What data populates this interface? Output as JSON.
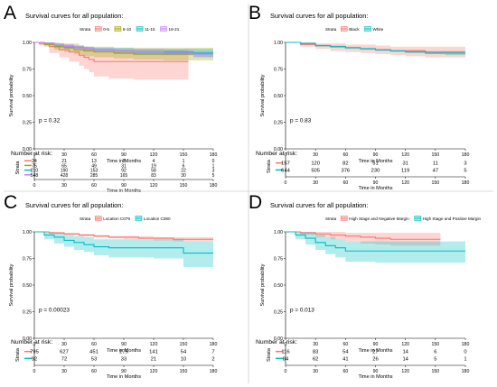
{
  "chart_data": [
    {
      "type": "line",
      "panel": "A",
      "title": "Survival curves for all population:",
      "xlabel": "Time in Months",
      "ylabel": "Survival probability",
      "xlim": [
        0,
        180
      ],
      "ylim": [
        0,
        1
      ],
      "xticks": [
        "0",
        "30",
        "60",
        "90",
        "120",
        "150",
        "180"
      ],
      "yticks": [
        "0.00",
        "0.25",
        "0.50",
        "0.75",
        "1.00"
      ],
      "legend_title": "Strata",
      "pvalue": "p = 0.32",
      "series": [
        {
          "name": "0-5",
          "color": "#F8766D",
          "x": [
            0,
            5,
            15,
            25,
            35,
            45,
            50,
            55,
            60,
            75,
            100,
            130,
            155
          ],
          "y": [
            1.0,
            0.99,
            0.96,
            0.93,
            0.91,
            0.88,
            0.86,
            0.84,
            0.82,
            0.82,
            0.82,
            0.82,
            0.82
          ],
          "ci_low": [
            1.0,
            0.97,
            0.9,
            0.86,
            0.82,
            0.78,
            0.75,
            0.72,
            0.68,
            0.66,
            0.65,
            0.65,
            0.65
          ],
          "ci_high": [
            1.0,
            1.0,
            1.0,
            0.99,
            0.99,
            0.97,
            0.96,
            0.95,
            0.93,
            0.93,
            0.93,
            0.93,
            0.93
          ]
        },
        {
          "name": "6-10",
          "color": "#A3A500",
          "x": [
            0,
            10,
            20,
            30,
            40,
            50,
            60,
            80,
            100,
            130,
            160,
            180
          ],
          "y": [
            1.0,
            0.98,
            0.96,
            0.95,
            0.93,
            0.92,
            0.91,
            0.9,
            0.89,
            0.89,
            0.89,
            0.89
          ],
          "ci_low": [
            1.0,
            0.96,
            0.93,
            0.91,
            0.89,
            0.87,
            0.86,
            0.85,
            0.84,
            0.83,
            0.83,
            0.83
          ],
          "ci_high": [
            1.0,
            1.0,
            0.99,
            0.98,
            0.97,
            0.96,
            0.96,
            0.95,
            0.95,
            0.95,
            0.95,
            0.95
          ]
        },
        {
          "name": "11-15",
          "color": "#00BFC4",
          "x": [
            0,
            10,
            20,
            30,
            40,
            50,
            60,
            80,
            100,
            130,
            160,
            180
          ],
          "y": [
            1.0,
            0.99,
            0.97,
            0.96,
            0.95,
            0.94,
            0.93,
            0.92,
            0.91,
            0.91,
            0.9,
            0.9
          ],
          "ci_low": [
            1.0,
            0.98,
            0.95,
            0.94,
            0.93,
            0.92,
            0.91,
            0.89,
            0.88,
            0.88,
            0.86,
            0.86
          ],
          "ci_high": [
            1.0,
            1.0,
            0.99,
            0.98,
            0.97,
            0.96,
            0.95,
            0.95,
            0.94,
            0.94,
            0.94,
            0.94
          ]
        },
        {
          "name": "16-21",
          "color": "#C77CFF",
          "x": [
            0,
            10,
            20,
            30,
            40,
            50,
            60,
            80,
            100,
            130,
            160,
            180
          ],
          "y": [
            1.0,
            0.99,
            0.97,
            0.96,
            0.95,
            0.94,
            0.93,
            0.92,
            0.91,
            0.9,
            0.89,
            0.89
          ],
          "ci_low": [
            1.0,
            0.98,
            0.96,
            0.95,
            0.94,
            0.93,
            0.92,
            0.9,
            0.89,
            0.88,
            0.86,
            0.86
          ],
          "ci_high": [
            1.0,
            1.0,
            0.99,
            0.98,
            0.97,
            0.96,
            0.95,
            0.94,
            0.94,
            0.93,
            0.92,
            0.92
          ]
        }
      ],
      "risk_table": {
        "title": "Number at risk:",
        "ylabel": "Strata",
        "small": true,
        "times": [
          0,
          30,
          60,
          90,
          120,
          150,
          180
        ],
        "rows": [
          {
            "color": "#F8766D",
            "values": [
              "24",
              "21",
              "13",
              "8",
              "4",
              "1",
              "0"
            ]
          },
          {
            "color": "#A3A500",
            "values": [
              "75",
              "65",
              "49",
              "31",
              "19",
              "6",
              "1"
            ]
          },
          {
            "color": "#00BFC4",
            "values": [
              "210",
              "190",
              "153",
              "92",
              "58",
              "22",
              "3"
            ]
          },
          {
            "color": "#C77CFF",
            "values": [
              "548",
              "428",
              "285",
              "165",
              "83",
              "30",
              "5"
            ]
          }
        ]
      }
    },
    {
      "type": "line",
      "panel": "B",
      "title": "Survival curves for all population:",
      "xlabel": "Time in Months",
      "ylabel": "Survival probability",
      "xlim": [
        0,
        180
      ],
      "ylim": [
        0,
        1
      ],
      "xticks": [
        "0",
        "30",
        "60",
        "90",
        "120",
        "150",
        "180"
      ],
      "yticks": [
        "0.00",
        "0.25",
        "0.50",
        "0.75",
        "1.00"
      ],
      "legend_title": "Strata",
      "pvalue": "p = 0.83",
      "series": [
        {
          "name": "Black",
          "color": "#F8766D",
          "x": [
            0,
            15,
            30,
            45,
            60,
            75,
            90,
            105,
            120,
            140,
            160,
            180
          ],
          "y": [
            1.0,
            0.98,
            0.97,
            0.96,
            0.95,
            0.94,
            0.93,
            0.92,
            0.92,
            0.91,
            0.91,
            0.91
          ],
          "ci_low": [
            1.0,
            0.96,
            0.94,
            0.92,
            0.91,
            0.9,
            0.89,
            0.88,
            0.87,
            0.86,
            0.86,
            0.86
          ],
          "ci_high": [
            1.0,
            1.0,
            0.99,
            0.99,
            0.98,
            0.98,
            0.97,
            0.96,
            0.96,
            0.96,
            0.96,
            0.96
          ]
        },
        {
          "name": "White",
          "color": "#00BFC4",
          "x": [
            0,
            15,
            30,
            45,
            60,
            75,
            90,
            105,
            120,
            140,
            160,
            180
          ],
          "y": [
            1.0,
            0.99,
            0.97,
            0.96,
            0.95,
            0.94,
            0.93,
            0.92,
            0.91,
            0.9,
            0.9,
            0.9
          ],
          "ci_low": [
            1.0,
            0.98,
            0.96,
            0.95,
            0.94,
            0.93,
            0.92,
            0.91,
            0.9,
            0.89,
            0.88,
            0.88
          ],
          "ci_high": [
            1.0,
            1.0,
            0.98,
            0.97,
            0.96,
            0.95,
            0.94,
            0.93,
            0.93,
            0.92,
            0.92,
            0.92
          ]
        }
      ],
      "risk_table": {
        "title": "Number at risk:",
        "ylabel": "Strata",
        "small": false,
        "times": [
          0,
          30,
          60,
          90,
          120,
          150,
          180
        ],
        "rows": [
          {
            "color": "#F8766D",
            "values": [
              "157",
              "120",
              "82",
              "51",
              "31",
              "11",
              "3"
            ]
          },
          {
            "color": "#00BFC4",
            "values": [
              "644",
              "505",
              "376",
              "230",
              "119",
              "47",
              "5"
            ]
          }
        ]
      }
    },
    {
      "type": "line",
      "panel": "C",
      "title": "Survival curves for all population:",
      "xlabel": "Time in Months",
      "ylabel": "Survival probability",
      "xlim": [
        0,
        180
      ],
      "ylim": [
        0,
        1
      ],
      "xticks": [
        "0",
        "30",
        "60",
        "90",
        "120",
        "150",
        "180"
      ],
      "yticks": [
        "0.00",
        "0.25",
        "0.50",
        "0.75",
        "1.00"
      ],
      "legend_title": "Strata",
      "pvalue": "p = 0.00023",
      "series": [
        {
          "name": "Location C079",
          "color": "#F8766D",
          "x": [
            0,
            15,
            30,
            45,
            60,
            75,
            90,
            105,
            120,
            140,
            160,
            180
          ],
          "y": [
            1.0,
            0.99,
            0.98,
            0.97,
            0.96,
            0.95,
            0.95,
            0.94,
            0.94,
            0.93,
            0.93,
            0.93
          ],
          "ci_low": [
            1.0,
            0.98,
            0.97,
            0.96,
            0.95,
            0.94,
            0.93,
            0.93,
            0.92,
            0.91,
            0.91,
            0.91
          ],
          "ci_high": [
            1.0,
            1.0,
            0.99,
            0.98,
            0.97,
            0.96,
            0.96,
            0.96,
            0.95,
            0.95,
            0.95,
            0.95
          ]
        },
        {
          "name": "Location C080",
          "color": "#00BFC4",
          "x": [
            0,
            10,
            20,
            30,
            40,
            50,
            60,
            75,
            90,
            105,
            120,
            135,
            150,
            180
          ],
          "y": [
            1.0,
            0.97,
            0.95,
            0.92,
            0.9,
            0.88,
            0.86,
            0.85,
            0.85,
            0.85,
            0.85,
            0.85,
            0.8,
            0.8
          ],
          "ci_low": [
            1.0,
            0.93,
            0.89,
            0.86,
            0.83,
            0.81,
            0.78,
            0.76,
            0.76,
            0.76,
            0.75,
            0.75,
            0.67,
            0.67
          ],
          "ci_high": [
            1.0,
            1.0,
            0.99,
            0.97,
            0.96,
            0.95,
            0.93,
            0.93,
            0.93,
            0.93,
            0.93,
            0.93,
            0.91,
            0.91
          ]
        }
      ],
      "risk_table": {
        "title": "Number at risk:",
        "ylabel": "Strata",
        "small": false,
        "times": [
          0,
          30,
          60,
          90,
          120,
          150,
          180
        ],
        "rows": [
          {
            "color": "#F8766D",
            "values": [
              "795",
              "627",
              "451",
              "275",
              "141",
              "54",
              "7"
            ]
          },
          {
            "color": "#00BFC4",
            "values": [
              "92",
              "72",
              "53",
              "33",
              "21",
              "10",
              "2"
            ]
          }
        ]
      }
    },
    {
      "type": "line",
      "panel": "D",
      "title": "Survival curves for all population:",
      "xlabel": "Time in Months",
      "ylabel": "Survival probability",
      "xlim": [
        0,
        180
      ],
      "ylim": [
        0,
        1
      ],
      "xticks": [
        "0",
        "30",
        "60",
        "90",
        "120",
        "150",
        "180"
      ],
      "yticks": [
        "0.00",
        "0.25",
        "0.50",
        "0.75",
        "1.00"
      ],
      "legend_title": "Strata",
      "pvalue": "p = 0.013",
      "series": [
        {
          "name": "High Stage and Negative Margin",
          "color": "#F8766D",
          "x": [
            0,
            15,
            30,
            45,
            60,
            75,
            90,
            105,
            120,
            140,
            155
          ],
          "y": [
            1.0,
            0.99,
            0.98,
            0.97,
            0.96,
            0.95,
            0.94,
            0.93,
            0.93,
            0.93,
            0.93
          ],
          "ci_low": [
            1.0,
            0.97,
            0.95,
            0.93,
            0.91,
            0.89,
            0.88,
            0.87,
            0.87,
            0.87,
            0.87
          ],
          "ci_high": [
            1.0,
            1.0,
            1.0,
            1.0,
            0.99,
            0.99,
            0.99,
            0.99,
            0.99,
            0.99,
            0.99
          ]
        },
        {
          "name": "High Stage and Positive Margin",
          "color": "#00BFC4",
          "x": [
            0,
            10,
            20,
            30,
            40,
            50,
            60,
            90,
            120,
            150,
            180
          ],
          "y": [
            1.0,
            0.97,
            0.94,
            0.9,
            0.87,
            0.85,
            0.82,
            0.82,
            0.82,
            0.82,
            0.82
          ],
          "ci_low": [
            1.0,
            0.93,
            0.88,
            0.83,
            0.79,
            0.76,
            0.72,
            0.71,
            0.71,
            0.71,
            0.71
          ],
          "ci_high": [
            1.0,
            1.0,
            1.0,
            0.97,
            0.95,
            0.93,
            0.91,
            0.91,
            0.91,
            0.91,
            0.91
          ]
        }
      ],
      "risk_table": {
        "title": "Number at risk:",
        "ylabel": "Strata",
        "small": false,
        "times": [
          0,
          30,
          60,
          90,
          120,
          150,
          180
        ],
        "rows": [
          {
            "color": "#F8766D",
            "values": [
              "116",
              "83",
              "54",
              "27",
              "14",
              "6",
              "0"
            ]
          },
          {
            "color": "#00BFC4",
            "values": [
              "84",
              "62",
              "41",
              "26",
              "14",
              "5",
              "1"
            ]
          }
        ]
      }
    }
  ]
}
